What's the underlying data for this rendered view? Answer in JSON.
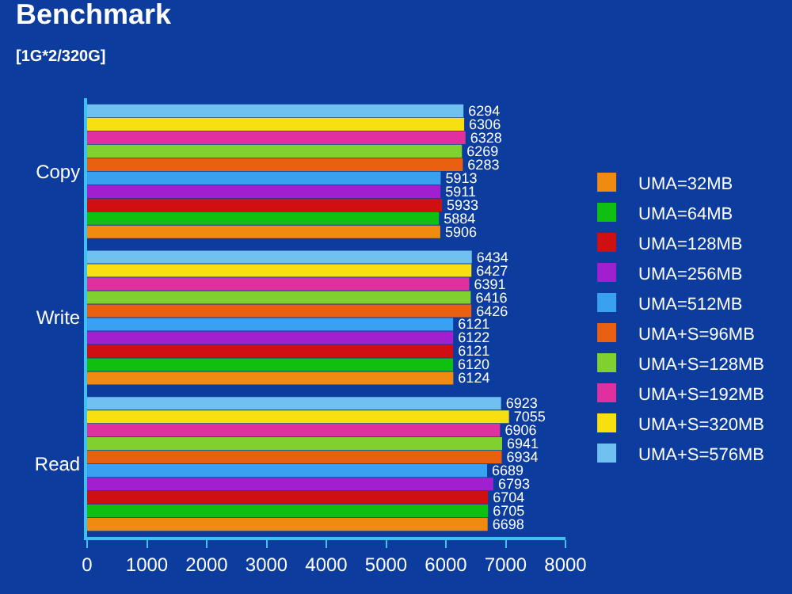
{
  "chart_data": {
    "type": "bar",
    "orientation": "horizontal",
    "title": "Benchmark",
    "subtitle": "[1G*2/320G]",
    "categories": [
      "Copy",
      "Write",
      "Read"
    ],
    "series": [
      {
        "name": "UMA=32MB",
        "color": "#f08a10",
        "values": [
          5906,
          6124,
          6698
        ]
      },
      {
        "name": "UMA=64MB",
        "color": "#10c010",
        "values": [
          5884,
          6120,
          6705
        ]
      },
      {
        "name": "UMA=128MB",
        "color": "#d01010",
        "values": [
          5933,
          6121,
          6704
        ]
      },
      {
        "name": "UMA=256MB",
        "color": "#a020d0",
        "values": [
          5911,
          6122,
          6793
        ]
      },
      {
        "name": "UMA=512MB",
        "color": "#3aa0f0",
        "values": [
          5913,
          6121,
          6689
        ]
      },
      {
        "name": "UMA+S=96MB",
        "color": "#e86010",
        "values": [
          6283,
          6426,
          6934
        ]
      },
      {
        "name": "UMA+S=128MB",
        "color": "#80d030",
        "values": [
          6269,
          6416,
          6941
        ]
      },
      {
        "name": "UMA+S=192MB",
        "color": "#e030a0",
        "values": [
          6328,
          6391,
          6906
        ]
      },
      {
        "name": "UMA+S=320MB",
        "color": "#f8e010",
        "values": [
          6306,
          6427,
          7055
        ]
      },
      {
        "name": "UMA+S=576MB",
        "color": "#70c0f0",
        "values": [
          6294,
          6434,
          6923
        ]
      }
    ],
    "xlim": [
      0,
      8000
    ],
    "xticks": [
      0,
      1000,
      2000,
      3000,
      4000,
      5000,
      6000,
      7000,
      8000
    ],
    "data_labels": true,
    "legend": "right",
    "grid": false
  }
}
